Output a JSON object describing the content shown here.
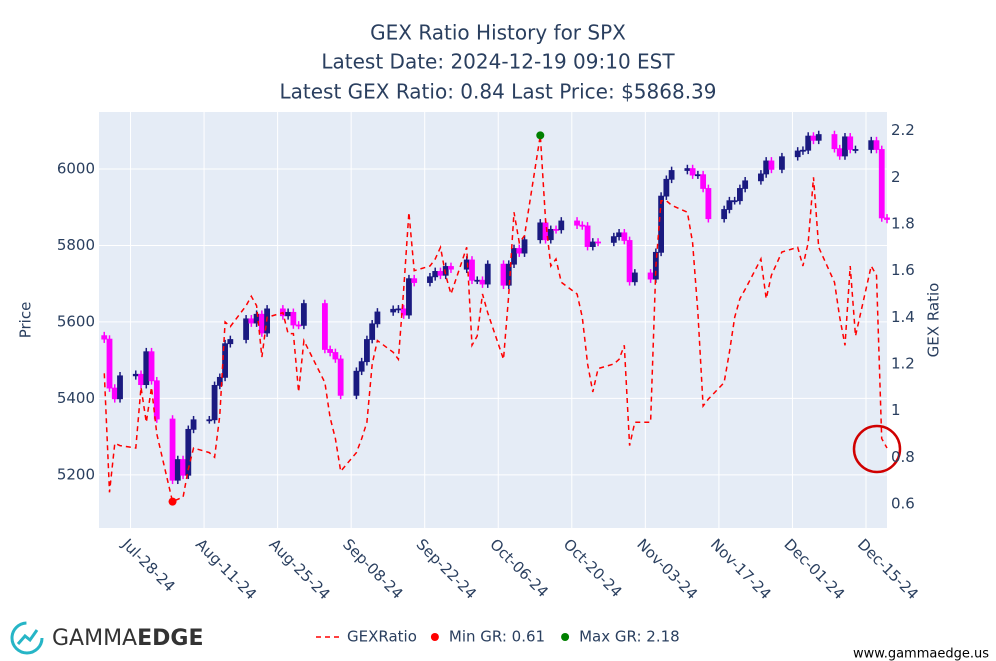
{
  "chart_data": {
    "type": "candlestick",
    "title": [
      "GEX Ratio History for SPX",
      "Latest Date: 2024-12-19 09:10 EST",
      "Latest GEX Ratio: 0.84 Last Price: $5868.39"
    ],
    "ylabel": "Price",
    "y2label": "GEX Ratio",
    "increasing_color": "#1a1a80",
    "decreasing_color": "#ff00ff",
    "grid": true,
    "xlim": [
      "2024-07-22",
      "2024-12-19"
    ],
    "xticks": [
      {
        "value": "2024-07-28",
        "label": "Jul-28-24"
      },
      {
        "value": "2024-08-11",
        "label": "Aug-11-24"
      },
      {
        "value": "2024-08-25",
        "label": "Aug-25-24"
      },
      {
        "value": "2024-09-08",
        "label": "Sep-08-24"
      },
      {
        "value": "2024-09-22",
        "label": "Sep-22-24"
      },
      {
        "value": "2024-10-06",
        "label": "Oct-06-24"
      },
      {
        "value": "2024-10-20",
        "label": "Oct-20-24"
      },
      {
        "value": "2024-11-03",
        "label": "Nov-03-24"
      },
      {
        "value": "2024-11-17",
        "label": "Nov-17-24"
      },
      {
        "value": "2024-12-01",
        "label": "Dec-01-24"
      },
      {
        "value": "2024-12-15",
        "label": "Dec-15-24"
      }
    ],
    "ylim": [
      5061,
      6149
    ],
    "yticks": [
      5200,
      5400,
      5600,
      5800,
      6000
    ],
    "y2lim": [
      0.497,
      2.28
    ],
    "y2ticks": [
      0.6,
      0.8,
      1,
      1.2,
      1.4,
      1.6,
      1.8,
      2,
      2.2
    ],
    "x": [
      "2024-07-23",
      "2024-07-24",
      "2024-07-25",
      "2024-07-26",
      "2024-07-29",
      "2024-07-30",
      "2024-07-31",
      "2024-08-01",
      "2024-08-02",
      "2024-08-05",
      "2024-08-06",
      "2024-08-07",
      "2024-08-08",
      "2024-08-09",
      "2024-08-12",
      "2024-08-13",
      "2024-08-14",
      "2024-08-15",
      "2024-08-16",
      "2024-08-19",
      "2024-08-20",
      "2024-08-21",
      "2024-08-22",
      "2024-08-23",
      "2024-08-26",
      "2024-08-27",
      "2024-08-28",
      "2024-08-29",
      "2024-08-30",
      "2024-09-03",
      "2024-09-04",
      "2024-09-05",
      "2024-09-06",
      "2024-09-09",
      "2024-09-10",
      "2024-09-11",
      "2024-09-12",
      "2024-09-13",
      "2024-09-16",
      "2024-09-17",
      "2024-09-18",
      "2024-09-19",
      "2024-09-20",
      "2024-09-23",
      "2024-09-24",
      "2024-09-25",
      "2024-09-26",
      "2024-09-27",
      "2024-09-30",
      "2024-10-01",
      "2024-10-02",
      "2024-10-03",
      "2024-10-04",
      "2024-10-07",
      "2024-10-08",
      "2024-10-09",
      "2024-10-10",
      "2024-10-11",
      "2024-10-14",
      "2024-10-15",
      "2024-10-16",
      "2024-10-17",
      "2024-10-18",
      "2024-10-21",
      "2024-10-22",
      "2024-10-23",
      "2024-10-24",
      "2024-10-25",
      "2024-10-28",
      "2024-10-29",
      "2024-10-30",
      "2024-10-31",
      "2024-11-01",
      "2024-11-04",
      "2024-11-05",
      "2024-11-06",
      "2024-11-07",
      "2024-11-08",
      "2024-11-11",
      "2024-11-12",
      "2024-11-13",
      "2024-11-14",
      "2024-11-15",
      "2024-11-18",
      "2024-11-19",
      "2024-11-20",
      "2024-11-21",
      "2024-11-22",
      "2024-11-25",
      "2024-11-26",
      "2024-11-27",
      "2024-11-29",
      "2024-12-02",
      "2024-12-03",
      "2024-12-04",
      "2024-12-05",
      "2024-12-06",
      "2024-12-09",
      "2024-12-10",
      "2024-12-11",
      "2024-12-12",
      "2024-12-13",
      "2024-12-16",
      "2024-12-17",
      "2024-12-18",
      "2024-12-19"
    ],
    "open": [
      5564,
      5555,
      5427,
      5399,
      5459,
      5463,
      5436,
      5522,
      5446,
      5346,
      5186,
      5240,
      5199,
      5319,
      5344,
      5344,
      5434,
      5455,
      5543,
      5554,
      5608,
      5597,
      5620,
      5571,
      5634,
      5616,
      5625,
      5592,
      5591,
      5648,
      5528,
      5520,
      5503,
      5408,
      5471,
      5496,
      5554,
      5595,
      5626,
      5633,
      5634,
      5618,
      5713,
      5703,
      5718,
      5732,
      5722,
      5745,
      5738,
      5762,
      5709,
      5709,
      5699,
      5751,
      5696,
      5751,
      5792,
      5780,
      5815,
      5859,
      5815,
      5842,
      5841,
      5864,
      5853,
      5851,
      5797,
      5809,
      5808,
      5823,
      5833,
      5813,
      5705,
      5728,
      5712,
      5782,
      5929,
      5973,
      5996,
      6001,
      5984,
      5985,
      5949,
      5870,
      5894,
      5917,
      5917,
      5949,
      5969,
      5987,
      6021,
      5999,
      6032,
      6047,
      6049,
      6086,
      6075,
      6090,
      6053,
      6034,
      6084,
      6051,
      6051,
      6074,
      6051,
      5872
    ],
    "high": [
      5574,
      5565,
      5437,
      5469,
      5473,
      5473,
      5532,
      5532,
      5456,
      5356,
      5250,
      5250,
      5329,
      5354,
      5354,
      5444,
      5465,
      5553,
      5564,
      5618,
      5618,
      5630,
      5630,
      5644,
      5644,
      5635,
      5635,
      5602,
      5658,
      5658,
      5538,
      5530,
      5513,
      5481,
      5506,
      5564,
      5605,
      5636,
      5643,
      5644,
      5644,
      5723,
      5723,
      5728,
      5742,
      5742,
      5755,
      5755,
      5772,
      5772,
      5719,
      5719,
      5761,
      5761,
      5761,
      5802,
      5802,
      5825,
      5869,
      5869,
      5852,
      5852,
      5874,
      5874,
      5863,
      5861,
      5819,
      5819,
      5833,
      5843,
      5843,
      5823,
      5738,
      5738,
      5792,
      5939,
      5983,
      6006,
      6011,
      6011,
      5995,
      5995,
      5959,
      5904,
      5927,
      5927,
      5959,
      5979,
      5997,
      6031,
      6031,
      6042,
      6057,
      6059,
      6096,
      6096,
      6100,
      6100,
      6063,
      6094,
      6094,
      6061,
      6084,
      6084,
      6061,
      5882
    ],
    "low": [
      5545,
      5417,
      5389,
      5389,
      5449,
      5426,
      5426,
      5436,
      5336,
      5176,
      5176,
      5189,
      5189,
      5309,
      5334,
      5334,
      5424,
      5445,
      5533,
      5544,
      5587,
      5587,
      5561,
      5561,
      5606,
      5606,
      5582,
      5581,
      5581,
      5518,
      5510,
      5493,
      5398,
      5398,
      5461,
      5486,
      5544,
      5585,
      5616,
      5623,
      5608,
      5608,
      5693,
      5693,
      5708,
      5712,
      5712,
      5728,
      5728,
      5699,
      5699,
      5689,
      5689,
      5686,
      5686,
      5741,
      5770,
      5770,
      5805,
      5805,
      5805,
      5831,
      5831,
      5843,
      5841,
      5787,
      5787,
      5798,
      5798,
      5813,
      5803,
      5695,
      5695,
      5702,
      5702,
      5772,
      5919,
      5963,
      5986,
      5974,
      5974,
      5939,
      5860,
      5860,
      5884,
      5907,
      5907,
      5939,
      5959,
      5977,
      5989,
      5989,
      6022,
      6037,
      6039,
      6065,
      6065,
      6043,
      6024,
      6024,
      6041,
      6041,
      6041,
      6041,
      5862,
      5858
    ],
    "close": [
      5555,
      5427,
      5399,
      5459,
      5463,
      5436,
      5522,
      5446,
      5346,
      5186,
      5240,
      5199,
      5319,
      5344,
      5344,
      5434,
      5455,
      5543,
      5554,
      5608,
      5597,
      5620,
      5571,
      5634,
      5616,
      5625,
      5592,
      5591,
      5648,
      5528,
      5520,
      5503,
      5408,
      5471,
      5496,
      5554,
      5595,
      5626,
      5633,
      5634,
      5618,
      5713,
      5703,
      5718,
      5732,
      5722,
      5745,
      5738,
      5762,
      5709,
      5709,
      5699,
      5751,
      5696,
      5751,
      5792,
      5780,
      5815,
      5859,
      5815,
      5842,
      5841,
      5864,
      5853,
      5851,
      5797,
      5809,
      5808,
      5823,
      5833,
      5813,
      5705,
      5728,
      5712,
      5782,
      5929,
      5973,
      5996,
      6001,
      5984,
      5985,
      5949,
      5870,
      5894,
      5917,
      5917,
      5949,
      5969,
      5987,
      6021,
      5999,
      6032,
      6047,
      6049,
      6086,
      6075,
      6090,
      6053,
      6034,
      6084,
      6051,
      6051,
      6074,
      6051,
      5872,
      5868
    ],
    "series": [
      {
        "name": "GEXRatio",
        "color": "#ff0000",
        "axis": "y2",
        "dash": true,
        "values": [
          1.16,
          0.65,
          0.86,
          0.85,
          0.84,
          1.1,
          0.95,
          1.1,
          0.9,
          0.61,
          0.62,
          0.63,
          0.75,
          0.84,
          0.82,
          0.8,
          0.98,
          1.38,
          1.36,
          1.45,
          1.49,
          1.45,
          1.23,
          1.4,
          1.42,
          1.33,
          1.33,
          1.08,
          1.3,
          1.12,
          0.97,
          0.88,
          0.74,
          0.82,
          0.88,
          0.95,
          1.2,
          1.3,
          1.25,
          1.22,
          1.52,
          1.85,
          1.6,
          1.62,
          1.65,
          1.7,
          1.58,
          1.5,
          1.7,
          1.28,
          1.32,
          1.5,
          1.42,
          1.22,
          1.5,
          1.85,
          1.72,
          1.75,
          2.18,
          1.82,
          1.62,
          1.65,
          1.55,
          1.5,
          1.4,
          1.2,
          1.08,
          1.18,
          1.2,
          1.22,
          1.28,
          0.85,
          0.95,
          0.95,
          1.62,
          1.9,
          1.9,
          1.88,
          1.85,
          1.72,
          1.42,
          1.02,
          1.05,
          1.12,
          1.25,
          1.4,
          1.48,
          1.52,
          1.65,
          1.48,
          1.58,
          1.68,
          1.7,
          1.62,
          1.72,
          2.0,
          1.7,
          1.55,
          1.4,
          1.28,
          1.62,
          1.32,
          1.62,
          1.58,
          0.88,
          0.84
        ]
      }
    ],
    "markers": [
      {
        "name": "Min GR: 0.61",
        "color": "#ff0000",
        "axis": "y2",
        "x": "2024-08-05",
        "value": 0.61
      },
      {
        "name": "Max GR: 2.18",
        "color": "#008000",
        "axis": "y2",
        "x": "2024-10-14",
        "value": 2.18
      }
    ]
  },
  "branding": {
    "logo_light": "GAMMA",
    "logo_bold": "EDGE",
    "website": "www.gammaedge.us"
  }
}
